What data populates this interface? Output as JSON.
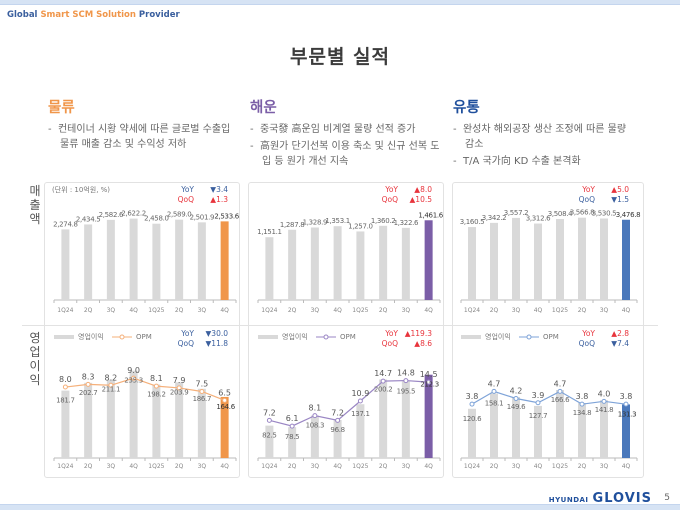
{
  "header": {
    "tagline_parts": [
      "Global",
      "Smart SCM Solution",
      "Provider"
    ],
    "title": "부문별 실적"
  },
  "colors": {
    "logistics": "#f0964a",
    "shipping": "#7b5ea7",
    "distribution": "#4a78bb",
    "bar_gray": "#d9d9d9",
    "up_red": "#e8343c",
    "down_blue": "#3a5f9e"
  },
  "segments": [
    {
      "name": "물류",
      "bullets": [
        "컨테이너 시황 약세에 따른 글로벌 수출입 물류 매출 감소 및 수익성 저하"
      ]
    },
    {
      "name": "해운",
      "bullets": [
        "중국發 高운임 비계열 물량 선적 증가",
        "高원가 단기선복 이용 축소 및 신규 선복 도입 등 원가 개선 지속"
      ]
    },
    {
      "name": "유통",
      "bullets": [
        "완성차 해외공장 생산 조정에 따른 물량 감소",
        "T/A 국가向 KD 수출 본격화"
      ]
    }
  ],
  "row_labels": {
    "revenue": "매출액",
    "op_income": "영업이익"
  },
  "unit_label": "(단위 : 10억원, %)",
  "legend": {
    "bar": "영업이익",
    "line": "OPM"
  },
  "chart_data": [
    {
      "type": "bar",
      "segment": "물류",
      "metric": "매출액",
      "categories": [
        "1Q24",
        "2Q",
        "3Q",
        "4Q",
        "1Q25",
        "2Q",
        "3Q",
        "4Q"
      ],
      "values": [
        2274.8,
        2434.5,
        2582.6,
        2622.2,
        2458.0,
        2589.0,
        2501.9,
        2533.6
      ],
      "labels": [
        "2,274.8",
        "2,434.5",
        "2,582.6",
        "2,622.2",
        "2,458.0",
        "2,589.0",
        "2,501.9",
        "2,533.6"
      ],
      "ylim": [
        0,
        2900
      ],
      "highlight_color": "#f0964a",
      "yoy": {
        "label": "YoY",
        "dir": "down",
        "value": "3.4"
      },
      "qoq": {
        "label": "QoQ",
        "dir": "up",
        "value": "1.3"
      }
    },
    {
      "type": "bar",
      "segment": "해운",
      "metric": "매출액",
      "categories": [
        "1Q24",
        "2Q",
        "3Q",
        "4Q",
        "1Q25",
        "2Q",
        "3Q",
        "4Q"
      ],
      "values": [
        1151.1,
        1287.8,
        1328.9,
        1353.1,
        1257.0,
        1360.2,
        1322.6,
        1461.6
      ],
      "labels": [
        "1,151.1",
        "1,287.8",
        "1,328.9",
        "1,353.1",
        "1,257.0",
        "1,360.2",
        "1,322.6",
        "1,461.6"
      ],
      "ylim": [
        0,
        1650
      ],
      "highlight_color": "#7b5ea7",
      "yoy": {
        "label": "YoY",
        "dir": "up",
        "value": "8.0"
      },
      "qoq": {
        "label": "QoQ",
        "dir": "up",
        "value": "10.5"
      }
    },
    {
      "type": "bar",
      "segment": "유통",
      "metric": "매출액",
      "categories": [
        "1Q24",
        "2Q",
        "3Q",
        "4Q",
        "1Q25",
        "2Q",
        "3Q",
        "4Q"
      ],
      "values": [
        3160.5,
        3342.2,
        3557.2,
        3312.6,
        3508.4,
        3566.8,
        3530.5,
        3476.8
      ],
      "labels": [
        "3,160.5",
        "3,342.2",
        "3,557.2",
        "3,312.6",
        "3,508.4",
        "3,566.8",
        "3,530.5",
        "3,476.8"
      ],
      "ylim": [
        0,
        3900
      ],
      "highlight_color": "#4a78bb",
      "yoy": {
        "label": "YoY",
        "dir": "up",
        "value": "5.0"
      },
      "qoq": {
        "label": "QoQ",
        "dir": "down",
        "value": "1.5"
      }
    },
    {
      "type": "bar+line",
      "segment": "물류",
      "metric": "영업이익 / OPM",
      "categories": [
        "1Q24",
        "2Q",
        "3Q",
        "4Q",
        "1Q25",
        "2Q",
        "3Q",
        "4Q"
      ],
      "bar_values": [
        181.7,
        202.7,
        211.1,
        235.3,
        198.2,
        203.9,
        186.7,
        164.6
      ],
      "bar_labels": [
        "181.7",
        "202.7",
        "211.1",
        "235.3",
        "198.2",
        "203.9",
        "186.7",
        "164.6"
      ],
      "line_values": [
        8.0,
        8.3,
        8.2,
        9.0,
        8.1,
        7.9,
        7.5,
        6.5
      ],
      "line_labels": [
        "8.0",
        "8.3",
        "8.2",
        "9.0",
        "8.1",
        "7.9",
        "7.5",
        "6.5"
      ],
      "bar_ylim": [
        0,
        275
      ],
      "line_ylim": [
        0,
        11.5
      ],
      "highlight_color": "#f0964a",
      "line_color": "#f5b07a",
      "yoy": {
        "label": "YoY",
        "dir": "down",
        "value": "30.0"
      },
      "qoq": {
        "label": "QoQ",
        "dir": "down",
        "value": "11.8"
      }
    },
    {
      "type": "bar+line",
      "segment": "해운",
      "metric": "영업이익 / OPM",
      "categories": [
        "1Q24",
        "2Q",
        "3Q",
        "4Q",
        "1Q25",
        "2Q",
        "3Q",
        "4Q"
      ],
      "bar_values": [
        82.5,
        78.5,
        108.3,
        96.8,
        137.1,
        200.2,
        195.5,
        212.3
      ],
      "bar_labels": [
        "82.5",
        "78.5",
        "108.3",
        "96.8",
        "137.1",
        "200.2",
        "195.5",
        "212.3"
      ],
      "line_values": [
        7.2,
        6.1,
        8.1,
        7.2,
        10.9,
        14.7,
        14.8,
        14.5
      ],
      "line_labels": [
        "7.2",
        "6.1",
        "8.1",
        "7.2",
        "10.9",
        "14.7",
        "14.8",
        "14.5"
      ],
      "bar_ylim": [
        0,
        260
      ],
      "line_ylim": [
        0,
        19.5
      ],
      "highlight_color": "#7b5ea7",
      "line_color": "#9a86c4",
      "yoy": {
        "label": "YoY",
        "dir": "up",
        "value": "119.3"
      },
      "qoq": {
        "label": "QoQ",
        "dir": "up",
        "value": "8.6"
      }
    },
    {
      "type": "bar+line",
      "segment": "유통",
      "metric": "영업이익 / OPM",
      "categories": [
        "1Q24",
        "2Q",
        "3Q",
        "4Q",
        "1Q25",
        "2Q",
        "3Q",
        "4Q"
      ],
      "bar_values": [
        120.6,
        158.1,
        149.6,
        127.7,
        166.6,
        134.8,
        141.8,
        131.3
      ],
      "bar_labels": [
        "120.6",
        "158.1",
        "149.6",
        "127.7",
        "166.6",
        "134.8",
        "141.8",
        "131.3"
      ],
      "line_values": [
        3.8,
        4.7,
        4.2,
        3.9,
        4.7,
        3.8,
        4.0,
        3.8
      ],
      "line_labels": [
        "3.8",
        "4.7",
        "4.2",
        "3.9",
        "4.7",
        "3.8",
        "4.0",
        "3.8"
      ],
      "bar_ylim": [
        0,
        250
      ],
      "line_ylim": [
        0,
        7.2
      ],
      "highlight_color": "#4a78bb",
      "line_color": "#7ea3d8",
      "yoy": {
        "label": "YoY",
        "dir": "up",
        "value": "2.8"
      },
      "qoq": {
        "label": "QoQ",
        "dir": "down",
        "value": "7.4"
      }
    }
  ],
  "footer": {
    "brand_small": "HYUNDAI",
    "brand_large": "GLOVIS",
    "page": "5"
  }
}
